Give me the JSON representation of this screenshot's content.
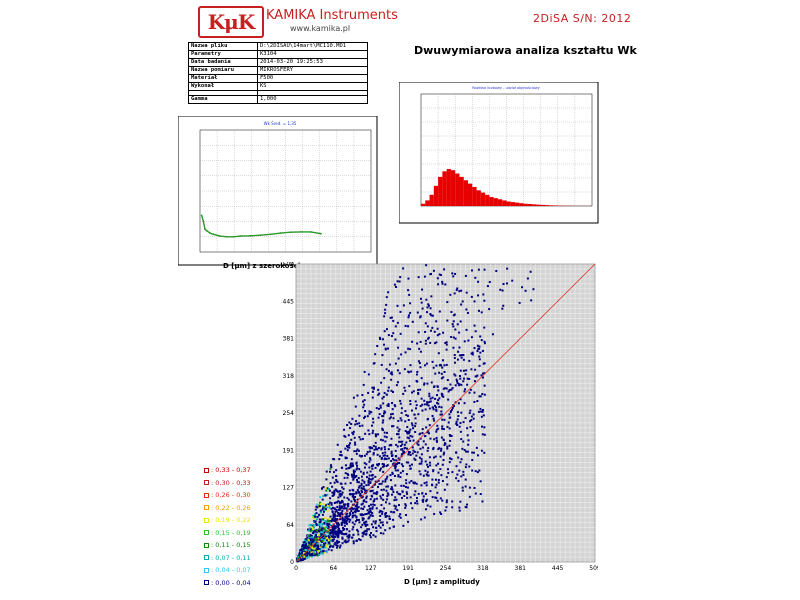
{
  "header": {
    "logo_text": "KμK",
    "brand_name": "KAMIKA Instruments",
    "brand_url": "www.kamika.pl",
    "serial": "2DiSA S/N: 2012",
    "main_title": "Dwuwymiarowa analiza kształtu Wk"
  },
  "info_table": [
    {
      "key": "Nazwa pliku",
      "value": "D:\\2DISAU\\14mart\\MC110.MD1"
    },
    {
      "key": "Parametry",
      "value": "K3104"
    },
    {
      "key": "Data badania",
      "value": "2014-03-20 19:25:53"
    },
    {
      "key": "Nazwa pomiaru",
      "value": "MIKROSFERY"
    },
    {
      "key": "Materiał",
      "value": "F500"
    },
    {
      "key": "Wykonał",
      "value": "KS"
    },
    {
      "key": "Gamma",
      "value": "1,000"
    }
  ],
  "captions": {
    "left_xlabel": "D [μm] z szerokości",
    "scatter_xlabel": "D [μm] z amplitudy"
  },
  "colors": {
    "brand": "#c62020",
    "wk_line": "#2a9a2a",
    "hist_fill": "#e60000",
    "diag_line": "#e03020",
    "scatter_bg": "#d4d4d4"
  },
  "legend": [
    {
      "label": "0,33 - 0,37",
      "color": "#cc0000"
    },
    {
      "label": "0,30 - 0,33",
      "color": "#c02020"
    },
    {
      "label": "0,26 - 0,30",
      "color": "#e03010"
    },
    {
      "label": "0,22 - 0,26",
      "color": "#f0a000"
    },
    {
      "label": "0,19 - 0,22",
      "color": "#e8e800"
    },
    {
      "label": "0,15 - 0,19",
      "color": "#30c030"
    },
    {
      "label": "0,11 - 0,15",
      "color": "#108810"
    },
    {
      "label": "0,07 - 0,11",
      "color": "#00b0b0"
    },
    {
      "label": "0,04 - 0,07",
      "color": "#30c8f0"
    },
    {
      "label": "0,00 - 0,04",
      "color": "#000080"
    }
  ],
  "chart_data": [
    {
      "type": "line",
      "title": "Wk Śred. = 1,35",
      "xlabel": "D [μm] z szerokości",
      "ylim": [
        0,
        4
      ],
      "series": [
        {
          "x": [
            5,
            10,
            15,
            20,
            30,
            40,
            60,
            80,
            100,
            120,
            150,
            180,
            210,
            240,
            270,
            300,
            330,
            360
          ],
          "y": [
            1.2,
            1.0,
            0.75,
            0.7,
            0.62,
            0.58,
            0.52,
            0.5,
            0.5,
            0.52,
            0.53,
            0.55,
            0.58,
            0.62,
            0.65,
            0.66,
            0.66,
            0.6
          ]
        }
      ]
    },
    {
      "type": "bar",
      "title": "Rozkład liczbowy - udział objętościowy",
      "xlim": [
        0,
        509
      ],
      "values": [
        0.02,
        0.05,
        0.1,
        0.18,
        0.26,
        0.31,
        0.33,
        0.32,
        0.29,
        0.26,
        0.23,
        0.2,
        0.17,
        0.14,
        0.12,
        0.1,
        0.08,
        0.07,
        0.06,
        0.05,
        0.04,
        0.035,
        0.03,
        0.025,
        0.02,
        0.018,
        0.015,
        0.012,
        0.01,
        0.008,
        0.006,
        0.005,
        0.004,
        0.003,
        0.002,
        0.002,
        0.001,
        0.001,
        0.001,
        0.001
      ]
    },
    {
      "type": "scatter",
      "xlabel": "D [μm] z amplitudy",
      "xlim": [
        0,
        509
      ],
      "ylim": [
        0,
        509
      ],
      "xticks": [
        "0",
        "64",
        "127",
        "191",
        "254",
        "318",
        "381",
        "445",
        "509"
      ],
      "yticks": [
        "0",
        "64",
        "127",
        "191",
        "254",
        "318",
        "381",
        "445",
        "509"
      ],
      "diagonal": [
        [
          0,
          0
        ],
        [
          509,
          509
        ]
      ]
    }
  ]
}
